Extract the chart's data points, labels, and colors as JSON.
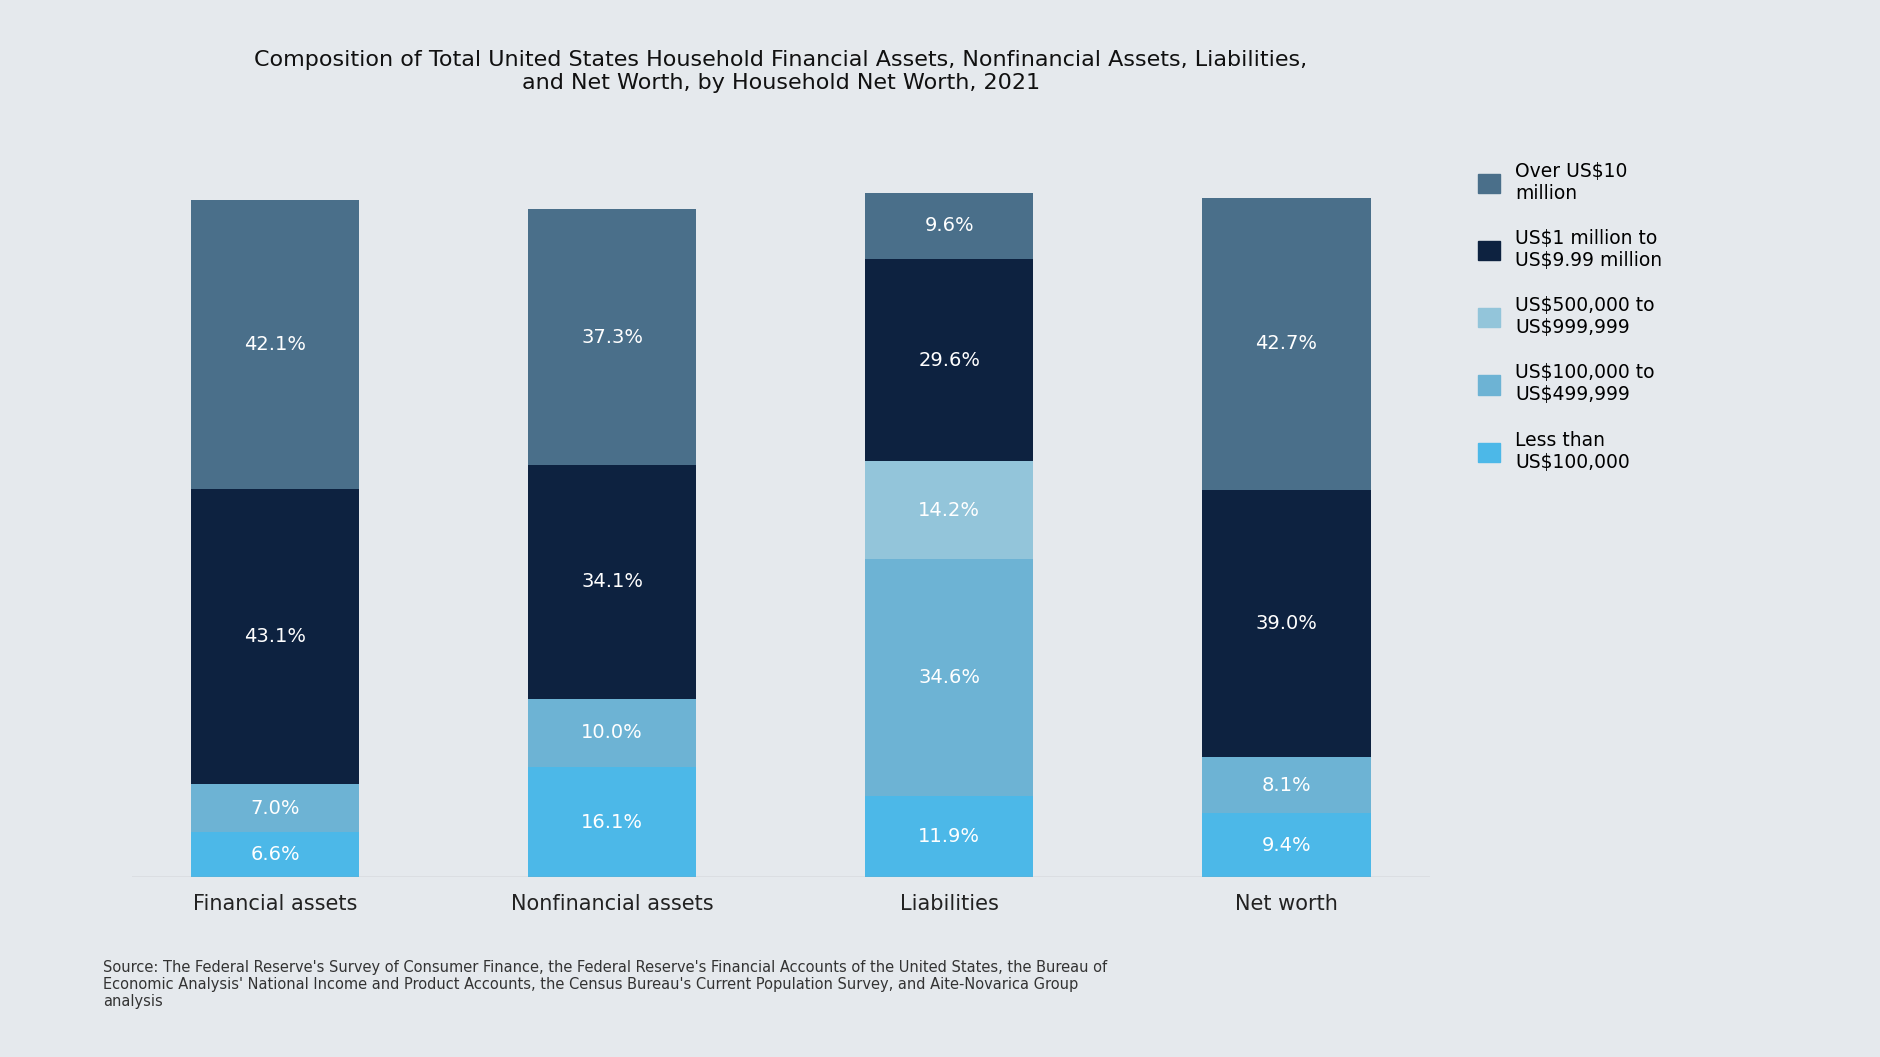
{
  "title": "Composition of Total United States Household Financial Assets, Nonfinancial Assets, Liabilities,\nand Net Worth, by Household Net Worth, 2021",
  "categories": [
    "Financial assets",
    "Nonfinancial assets",
    "Liabilities",
    "Net worth"
  ],
  "segments": [
    {
      "label": "Less than\nUS$100,000",
      "color": "#4cb8e8",
      "values": [
        6.6,
        16.1,
        11.9,
        9.4
      ]
    },
    {
      "label": "US$100,000 to\nUS$499,999",
      "color": "#6db3d4",
      "values": [
        7.0,
        10.0,
        34.6,
        8.1
      ]
    },
    {
      "label": "US$500,000 to\nUS$999,999",
      "color": "#93c5da",
      "values": [
        0.0,
        0.0,
        14.2,
        0.0
      ]
    },
    {
      "label": "US$1 million to\nUS$9.99 million",
      "color": "#0d2240",
      "values": [
        43.1,
        34.1,
        29.6,
        39.0
      ]
    },
    {
      "label": "Over US$10\nmillion",
      "color": "#4a6f8a",
      "values": [
        42.1,
        37.3,
        9.6,
        42.7
      ]
    }
  ],
  "source_text": "Source: The Federal Reserve's Survey of Consumer Finance, the Federal Reserve's Financial Accounts of the United States, the Bureau of\nEconomic Analysis' National Income and Product Accounts, the Census Bureau's Current Population Survey, and Aite-Novarica Group\nanalysis",
  "background_color": "#e5e9ed",
  "bar_width": 0.5,
  "legend_labels": [
    "Over US$10\nmillion",
    "US$1 million to\nUS$9.99 million",
    "US$500,000 to\nUS$999,999",
    "US$100,000 to\nUS$499,999",
    "Less than\nUS$100,000"
  ],
  "legend_colors": [
    "#4a6f8a",
    "#0d2240",
    "#93c5da",
    "#6db3d4",
    "#4cb8e8"
  ]
}
